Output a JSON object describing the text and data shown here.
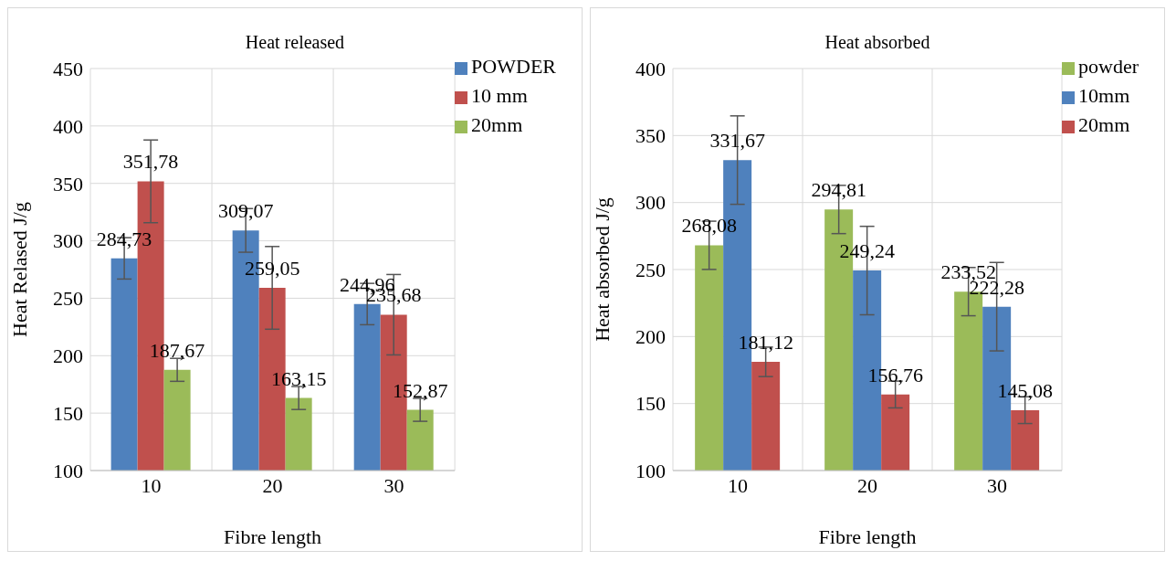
{
  "chart_data": [
    {
      "type": "bar",
      "title": "Heat released",
      "xlabel": "Fibre length",
      "ylabel": "Heat Relased J/g",
      "categories": [
        "10",
        "20",
        "30"
      ],
      "ylim": [
        100,
        450
      ],
      "yticks": [
        100,
        150,
        200,
        250,
        300,
        350,
        400,
        450
      ],
      "grid": true,
      "legend": "top right",
      "series": [
        {
          "name": "POWDER",
          "color": "#4f81bd",
          "values": [
            284.73,
            309.07,
            244.96
          ],
          "errors": [
            18,
            19,
            18
          ],
          "value_labels": [
            "284,73",
            "309,07",
            "244,96"
          ]
        },
        {
          "name": "10 mm",
          "color": "#c0504d",
          "values": [
            351.78,
            259.05,
            235.68
          ],
          "errors": [
            36,
            36,
            35
          ],
          "value_labels": [
            "351,78",
            "259,05",
            "235,68"
          ]
        },
        {
          "name": "20mm",
          "color": "#9bbb59",
          "values": [
            187.67,
            163.15,
            152.87
          ],
          "errors": [
            10,
            10,
            10
          ],
          "value_labels": [
            "187,67",
            "163,15",
            "152,87"
          ]
        }
      ]
    },
    {
      "type": "bar",
      "title": "Heat absorbed",
      "xlabel": "Fibre length",
      "ylabel": "Heat absorbed J/g",
      "categories": [
        "10",
        "20",
        "30"
      ],
      "ylim": [
        100,
        400
      ],
      "yticks": [
        100,
        150,
        200,
        250,
        300,
        350,
        400
      ],
      "grid": true,
      "legend": "top right",
      "series": [
        {
          "name": "powder",
          "color": "#9bbb59",
          "values": [
            268.08,
            294.81,
            233.52
          ],
          "errors": [
            18,
            18,
            18
          ],
          "value_labels": [
            "268,08",
            "294,81",
            "233,52"
          ]
        },
        {
          "name": "10mm",
          "color": "#4f81bd",
          "values": [
            331.67,
            249.24,
            222.28
          ],
          "errors": [
            33,
            33,
            33
          ],
          "value_labels": [
            "331,67",
            "249,24",
            "222,28"
          ]
        },
        {
          "name": "20mm",
          "color": "#c0504d",
          "values": [
            181.12,
            156.76,
            145.08
          ],
          "errors": [
            11,
            10,
            10
          ],
          "value_labels": [
            "181,12",
            "156,76",
            "145,08"
          ]
        }
      ]
    }
  ]
}
